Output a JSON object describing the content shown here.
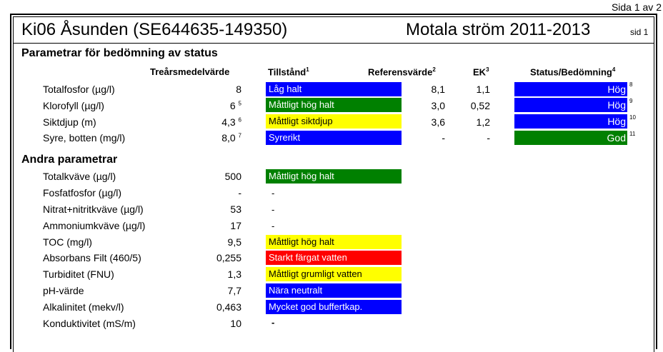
{
  "page_label": "Sida 1 av 2",
  "header": {
    "site": "Ki06  Åsunden (SE644635-149350)",
    "program": "Motala ström 2011-2013",
    "page_small": "sid 1"
  },
  "section1": {
    "title": "Parametrar för bedömning av status",
    "col_mean": "Treårsmedelvärde",
    "col_state": "Tillstånd",
    "col_state_fn": "1",
    "col_ref": "Referensvärde",
    "col_ref_fn": "2",
    "col_ek": "EK",
    "col_ek_fn": "3",
    "col_status": "Status/Bedömning",
    "col_status_fn": "4",
    "rows": [
      {
        "name": "Totalfosfor (µg/l)",
        "value": "8",
        "value_fn": "",
        "state": "Låg halt",
        "ref": "8,1",
        "ek": "1,1",
        "status": "Hög",
        "status_fn": "8"
      },
      {
        "name": "Klorofyll (µg/l)",
        "value": "6",
        "value_fn": "5",
        "state": "Måttligt hög halt",
        "ref": "3,0",
        "ek": "0,52",
        "status": "Hög",
        "status_fn": "9"
      },
      {
        "name": "Siktdjup (m)",
        "value": "4,3",
        "value_fn": "6",
        "state": "Måttligt siktdjup",
        "ref": "3,6",
        "ek": "1,2",
        "status": "Hög",
        "status_fn": "10"
      },
      {
        "name": "Syre, botten (mg/l)",
        "value": "8,0",
        "value_fn": "7",
        "state": "Syrerikt",
        "ref": "-",
        "ek": "-",
        "status": "God",
        "status_fn": "11"
      }
    ]
  },
  "section2": {
    "title": "Andra parametrar",
    "rows": [
      {
        "name": "Totalkväve (µg/l)",
        "value": "500",
        "state": "Måttligt hög halt"
      },
      {
        "name": "Fosfatfosfor (µg/l)",
        "value": "-",
        "state": "-"
      },
      {
        "name": "Nitrat+nitritkväve (µg/l)",
        "value": "53",
        "state": "-"
      },
      {
        "name": "Ammoniumkväve (µg/l)",
        "value": "17",
        "state": "-"
      },
      {
        "name": "TOC (mg/l)",
        "value": "9,5",
        "state": "Måttligt hög halt"
      },
      {
        "name": "Absorbans Filt (460/5)",
        "value": "0,255",
        "state": "Starkt färgat vatten"
      },
      {
        "name": "Turbiditet (FNU)",
        "value": "1,3",
        "state": "Måttligt grumligt vatten"
      },
      {
        "name": "pH-värde",
        "value": "7,7",
        "state": "Nära neutralt"
      },
      {
        "name": "Alkalinitet (mekv/l)",
        "value": "0,463",
        "state": "Mycket god buffertkap."
      },
      {
        "name": "Konduktivitet (mS/m)",
        "value": "10",
        "state": "-"
      }
    ]
  },
  "colors": {
    "blue": "#0000ff",
    "green": "#008000",
    "yellow": "#ffff00",
    "red": "#ff0000"
  }
}
